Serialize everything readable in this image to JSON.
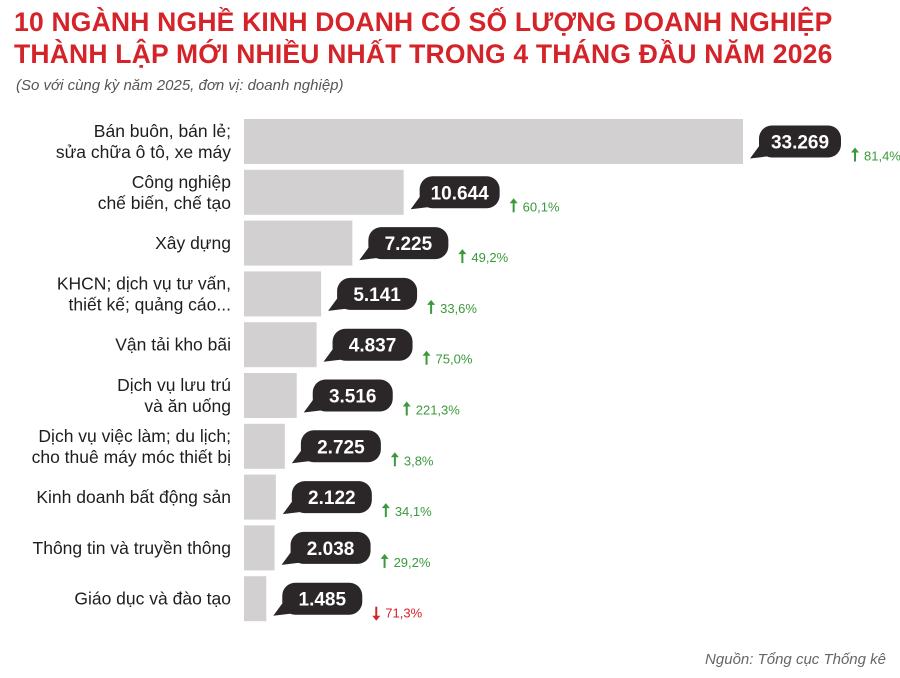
{
  "header": {
    "title_line1": "10 NGÀNH NGHỀ KINH DOANH CÓ SỐ LƯỢNG DOANH NGHIỆP",
    "title_line2": "THÀNH LẬP MỚI NHIỀU NHẤT TRONG 4 THÁNG ĐẦU NĂM 2026",
    "subtitle": "(So với cùng kỳ năm 2025, đơn vị: doanh nghiệp)"
  },
  "footer": {
    "source": "Nguồn: Tổng cục Thống kê"
  },
  "colors": {
    "title": "#d5232a",
    "bar": "#d2d0d1",
    "bubble": "#2b2628",
    "up": "#3a9a3a",
    "down": "#d5232a"
  },
  "chart_data": {
    "type": "bar",
    "orientation": "horizontal",
    "categories": [
      [
        "Bán buôn, bán lẻ;",
        "sửa chữa ô tô, xe máy"
      ],
      [
        "Công nghiệp",
        "chế biến, chế tạo"
      ],
      [
        "Xây dựng"
      ],
      [
        "KHCN; dịch vụ tư vấn,",
        "thiết kế; quảng cáo..."
      ],
      [
        "Vận tải kho bãi"
      ],
      [
        "Dịch vụ lưu trú",
        "và ăn uống"
      ],
      [
        "Dịch vụ việc làm; du lịch;",
        "cho thuê máy móc thiết bị"
      ],
      [
        "Kinh doanh bất động sản"
      ],
      [
        "Thông tin và truyền thông"
      ],
      [
        "Giáo dục và đào tạo"
      ]
    ],
    "values": [
      33269,
      10644,
      7225,
      5141,
      4837,
      3516,
      2725,
      2122,
      2038,
      1485
    ],
    "value_labels": [
      "33.269",
      "10.644",
      "7.225",
      "5.141",
      "4.837",
      "3.516",
      "2.725",
      "2.122",
      "2.038",
      "1.485"
    ],
    "changes": [
      {
        "label": "81,4%",
        "direction": "up"
      },
      {
        "label": "60,1%",
        "direction": "up"
      },
      {
        "label": "49,2%",
        "direction": "up"
      },
      {
        "label": "33,6%",
        "direction": "up"
      },
      {
        "label": "75,0%",
        "direction": "up"
      },
      {
        "label": "221,3%",
        "direction": "up"
      },
      {
        "label": "3,8%",
        "direction": "up"
      },
      {
        "label": "34,1%",
        "direction": "up"
      },
      {
        "label": "29,2%",
        "direction": "up"
      },
      {
        "label": "71,3%",
        "direction": "down"
      }
    ],
    "xlim": [
      0,
      33269
    ],
    "grid": false
  }
}
